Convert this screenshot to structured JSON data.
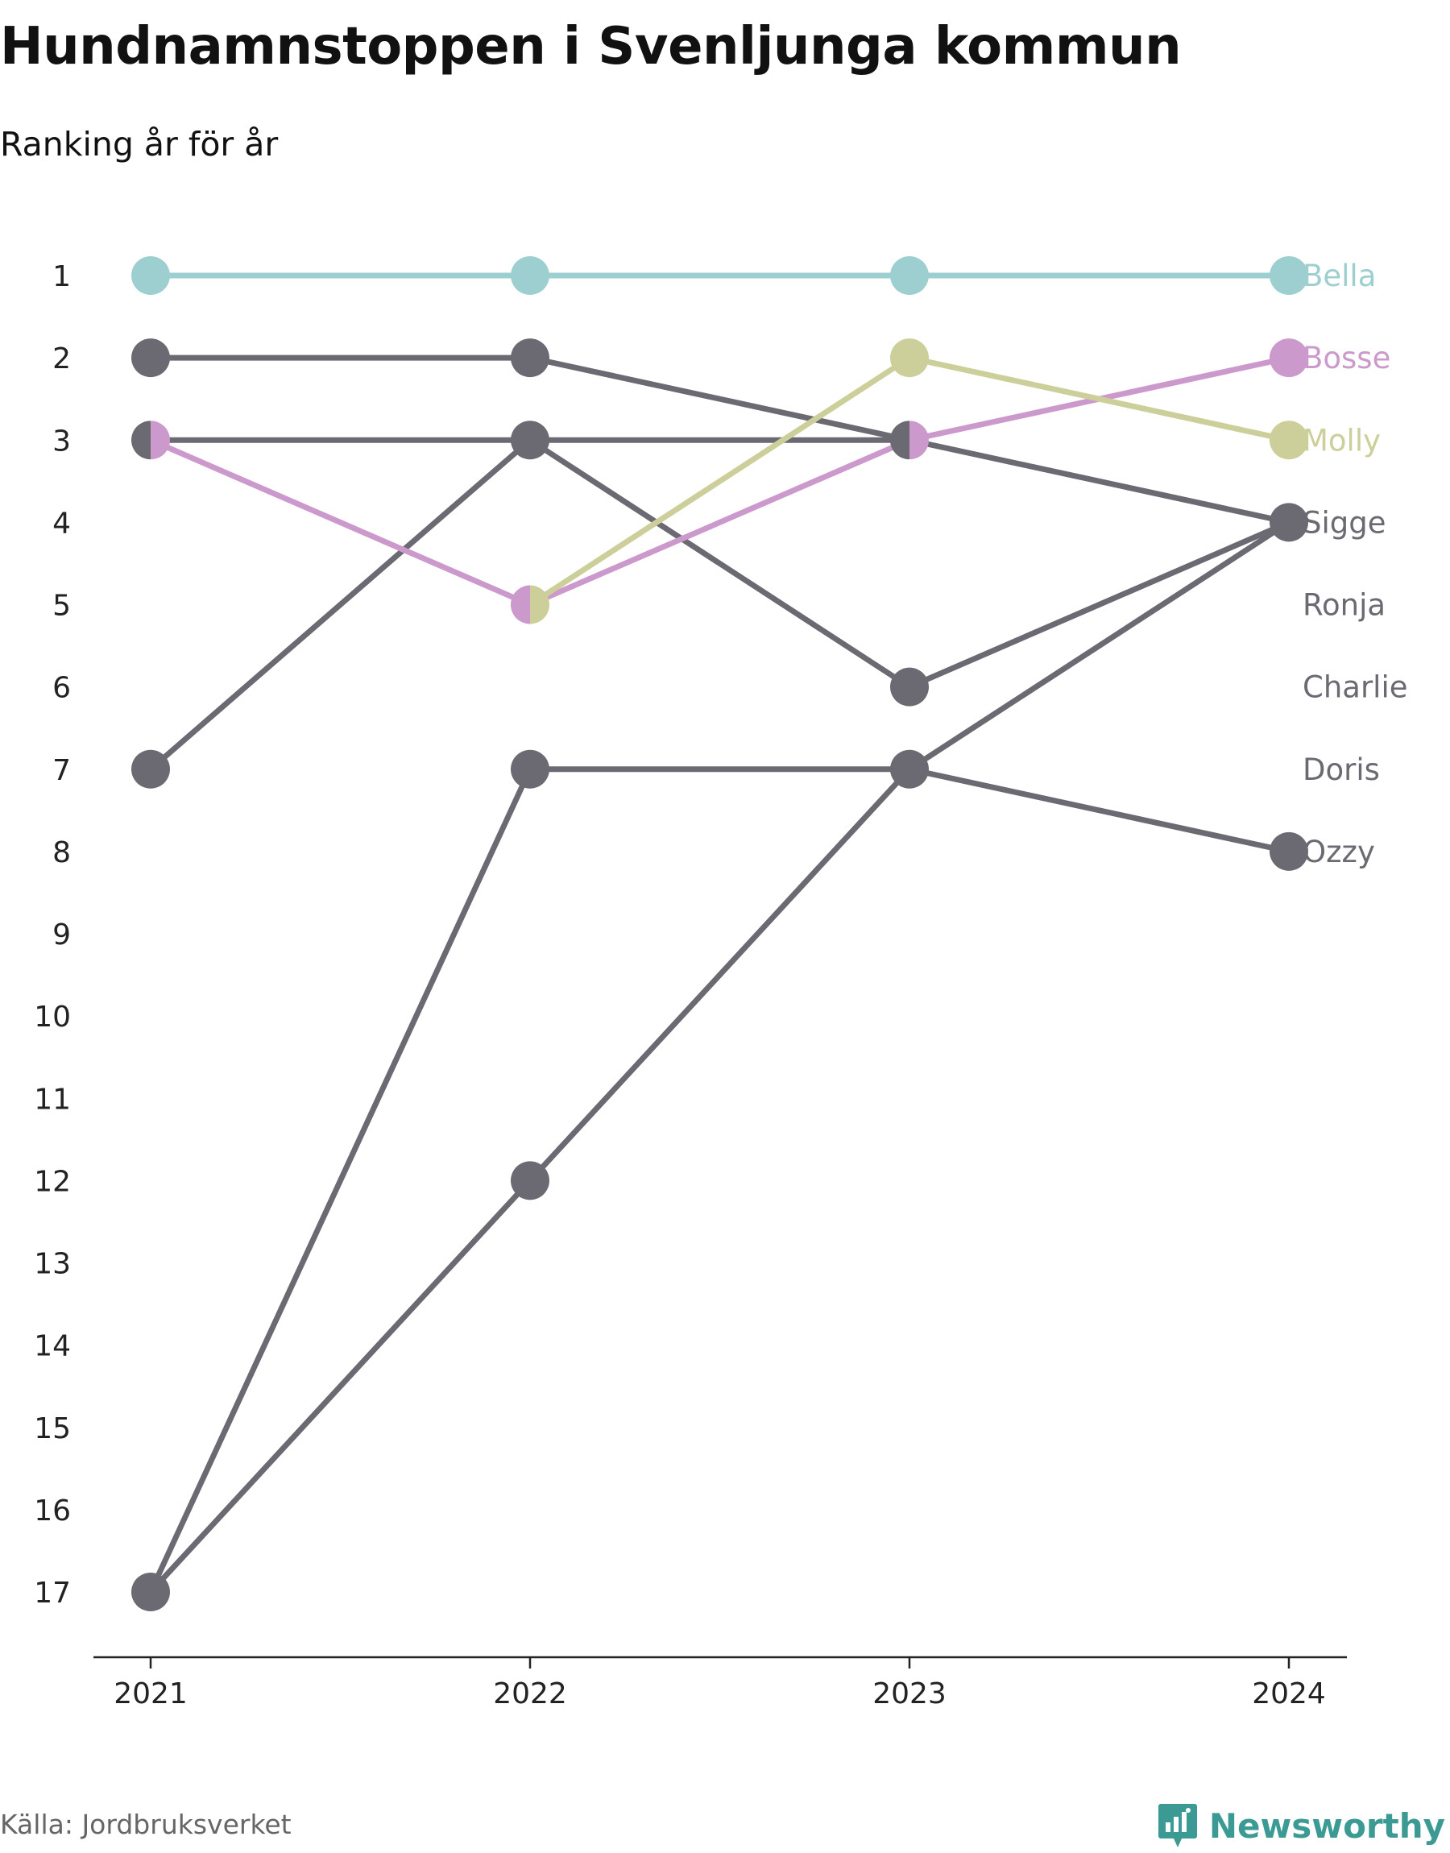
{
  "title": "Hundnamnstoppen i Svenljunga kommun",
  "subtitle": "Ranking år för år",
  "source": "Källa: Jordbruksverket",
  "brand": "Newsworthy",
  "colors": {
    "bella": "#9ecfd0",
    "bosse": "#cc99cc",
    "molly": "#cccf99",
    "grey": "#6b6a72",
    "brand": "#3c9a94"
  },
  "chart_data": {
    "type": "line",
    "x": [
      2021,
      2022,
      2023,
      2024
    ],
    "y_ticks": [
      1,
      2,
      3,
      4,
      5,
      6,
      7,
      8,
      9,
      10,
      11,
      12,
      13,
      14,
      15,
      16,
      17
    ],
    "ylim": [
      1,
      17
    ],
    "y_inverted": true,
    "series": [
      {
        "name": "Bella",
        "color": "#9ecfd0",
        "values": [
          1,
          1,
          1,
          1
        ]
      },
      {
        "name": "Bosse",
        "color": "#cc99cc",
        "values": [
          3,
          5,
          3,
          2
        ]
      },
      {
        "name": "Molly",
        "color": "#cccf99",
        "values": [
          null,
          5,
          2,
          3
        ]
      },
      {
        "name": "Sigge",
        "color": "#6b6a72",
        "values": [
          2,
          2,
          3,
          4
        ]
      },
      {
        "name": "Ronja",
        "color": "#6b6a72",
        "values": [
          3,
          3,
          3,
          null
        ]
      },
      {
        "name": "Charlie",
        "color": "#6b6a72",
        "values": [
          7,
          3,
          6,
          4
        ]
      },
      {
        "name": "Doris",
        "color": "#6b6a72",
        "values": [
          17,
          12,
          7,
          4
        ]
      },
      {
        "name": "Ozzy",
        "color": "#6b6a72",
        "values": [
          17,
          7,
          7,
          8
        ]
      }
    ],
    "labels_2024": [
      {
        "text": "Bella",
        "rank": 1,
        "color": "#9ecfd0"
      },
      {
        "text": "Bosse",
        "rank": 2,
        "color": "#cc99cc"
      },
      {
        "text": "Molly",
        "rank": 3,
        "color": "#cccf99"
      },
      {
        "text": "Sigge",
        "rank": 4,
        "color": "#6b6a72"
      },
      {
        "text": "Ronja",
        "rank": 5,
        "color": "#6b6a72"
      },
      {
        "text": "Charlie",
        "rank": 6,
        "color": "#6b6a72"
      },
      {
        "text": "Doris",
        "rank": 7,
        "color": "#6b6a72"
      },
      {
        "text": "Ozzy",
        "rank": 8,
        "color": "#6b6a72"
      }
    ]
  }
}
